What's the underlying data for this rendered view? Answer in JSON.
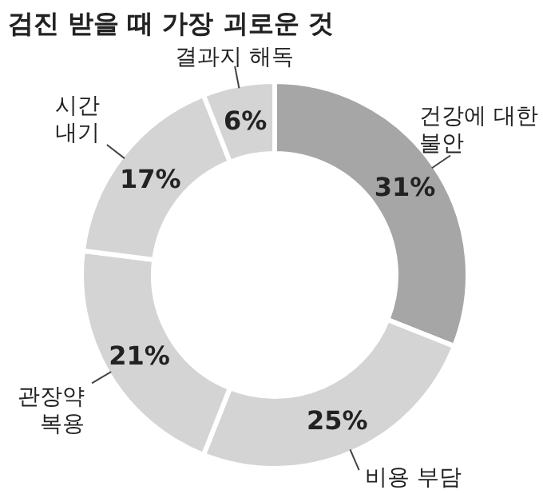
{
  "chart_data": {
    "type": "donut",
    "title": "검진 받을 때 가장 괴로운 것",
    "categories": [
      "건강에 대한\n불안",
      "비용 부담",
      "관장약\n복용",
      "시간\n내기",
      "결과지 해독"
    ],
    "values": [
      31,
      25,
      21,
      17,
      6
    ],
    "value_labels": [
      "31%",
      "25%",
      "21%",
      "17%",
      "6%"
    ],
    "colors": [
      "#a6a6a6",
      "#d4d4d4",
      "#d4d4d4",
      "#d4d4d4",
      "#d4d4d4"
    ]
  }
}
